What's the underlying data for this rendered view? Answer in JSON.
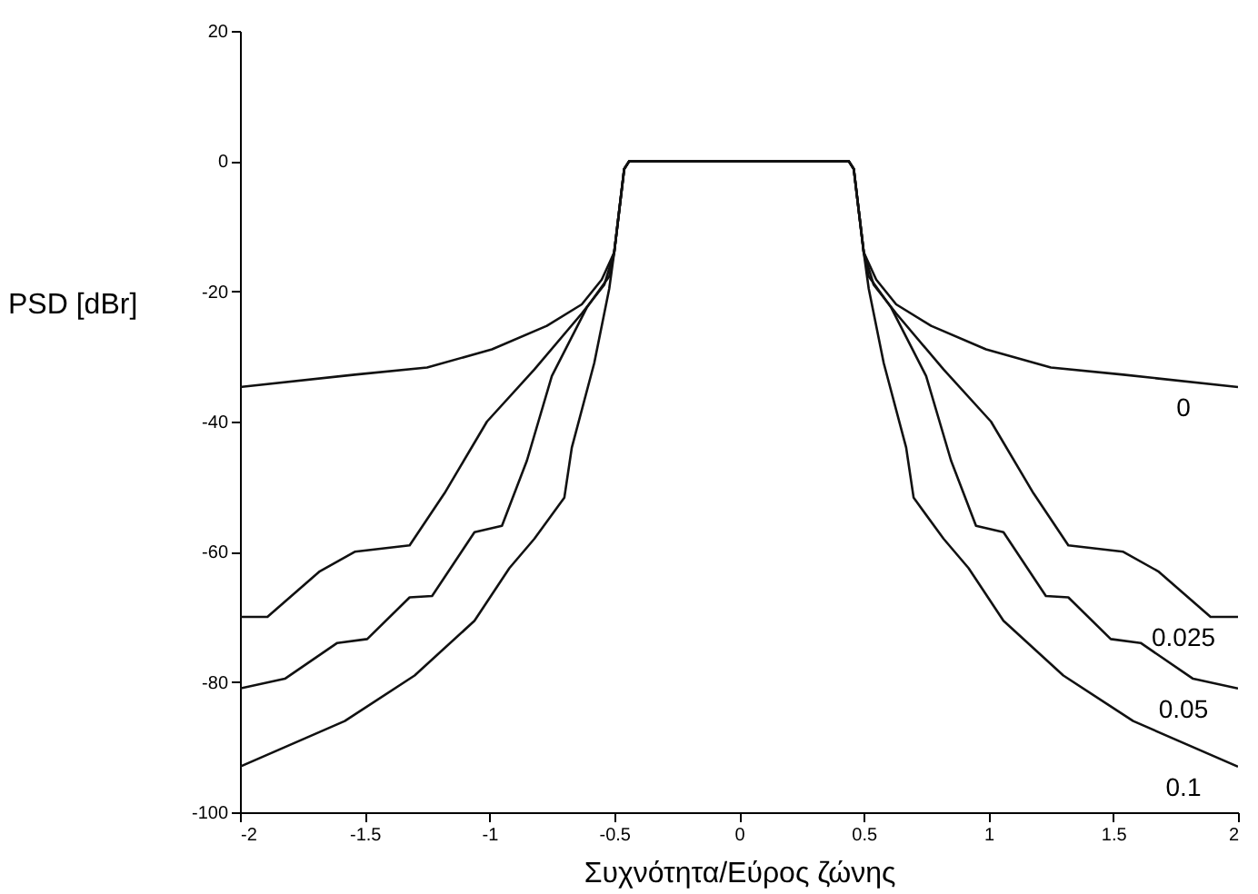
{
  "chart_data": {
    "type": "line",
    "xlabel": "Συχνότητα/Εύρος ζώνης",
    "ylabel": "PSD [dBr]",
    "xlim": [
      -2,
      2
    ],
    "xticks": [
      -2,
      -1.5,
      -1,
      -0.5,
      0,
      0.5,
      1,
      1.5,
      2
    ],
    "ylim": [
      -100,
      20
    ],
    "yticks": [
      -100,
      -80,
      -60,
      -40,
      -20,
      0,
      20
    ],
    "grid": false,
    "legend": false,
    "marker": "none",
    "line_style": "solid",
    "series": [
      {
        "name": "0",
        "color": "#111111",
        "x": [
          -2,
          -1.54,
          -1.25,
          -0.99,
          -0.77,
          -0.63,
          -0.55,
          -0.5,
          -0.46,
          -0.44,
          0.44,
          0.46,
          0.5,
          0.55,
          0.63,
          0.77,
          0.99,
          1.25,
          1.54,
          2
        ],
        "values": [
          -34.7,
          -32.8,
          -31.7,
          -28.9,
          -25.3,
          -22,
          -18.2,
          -14,
          -1.2,
          0,
          0,
          -1.2,
          -14,
          -18.2,
          -22,
          -25.3,
          -28.9,
          -31.7,
          -32.8,
          -34.7
        ]
      },
      {
        "name": "0.025",
        "color": "#111111",
        "x": [
          -2,
          -1.89,
          -1.68,
          -1.54,
          -1.32,
          -1.18,
          -1.01,
          -0.82,
          -0.63,
          -0.54,
          -0.5,
          -0.46,
          -0.44,
          0.44,
          0.46,
          0.5,
          0.54,
          0.63,
          0.82,
          1.01,
          1.18,
          1.32,
          1.54,
          1.68,
          1.89,
          2
        ],
        "values": [
          -70,
          -70,
          -63,
          -60,
          -59,
          -51,
          -40,
          -32,
          -23.4,
          -19,
          -14,
          -1.2,
          0,
          0,
          -1.2,
          -14,
          -19,
          -23.4,
          -32,
          -40,
          -51,
          -59,
          -60,
          -63,
          -70,
          -70
        ]
      },
      {
        "name": "0.05",
        "color": "#111111",
        "x": [
          -2,
          -1.82,
          -1.61,
          -1.49,
          -1.32,
          -1.23,
          -1.06,
          -0.95,
          -0.85,
          -0.75,
          -0.61,
          -0.52,
          -0.5,
          -0.46,
          -0.44,
          0.44,
          0.46,
          0.5,
          0.52,
          0.61,
          0.75,
          0.85,
          0.95,
          1.06,
          1.23,
          1.32,
          1.49,
          1.61,
          1.82,
          2
        ],
        "values": [
          -81,
          -79.5,
          -74,
          -73.4,
          -67,
          -66.8,
          -57,
          -56,
          -46,
          -33,
          -22.5,
          -17.7,
          -14,
          -1.2,
          0,
          0,
          -1.2,
          -14,
          -17.7,
          -22.5,
          -33,
          -46,
          -56,
          -57,
          -66.8,
          -67,
          -73.4,
          -74,
          -79.5,
          -81
        ]
      },
      {
        "name": "0.1",
        "color": "#111111",
        "x": [
          -2,
          -1.58,
          -1.3,
          -1.06,
          -0.92,
          -0.82,
          -0.7,
          -0.67,
          -0.58,
          -0.52,
          -0.5,
          -0.46,
          -0.44,
          0.44,
          0.46,
          0.5,
          0.52,
          0.58,
          0.67,
          0.7,
          0.82,
          0.92,
          1.06,
          1.3,
          1.58,
          2
        ],
        "values": [
          -93,
          -86,
          -79,
          -70.6,
          -62.5,
          -58,
          -51.7,
          -44,
          -31,
          -19.6,
          -14,
          -1.2,
          0,
          0,
          -1.2,
          -14,
          -19.6,
          -31,
          -44,
          -51.7,
          -58,
          -62.5,
          -70.6,
          -79,
          -86,
          -93
        ]
      }
    ]
  }
}
